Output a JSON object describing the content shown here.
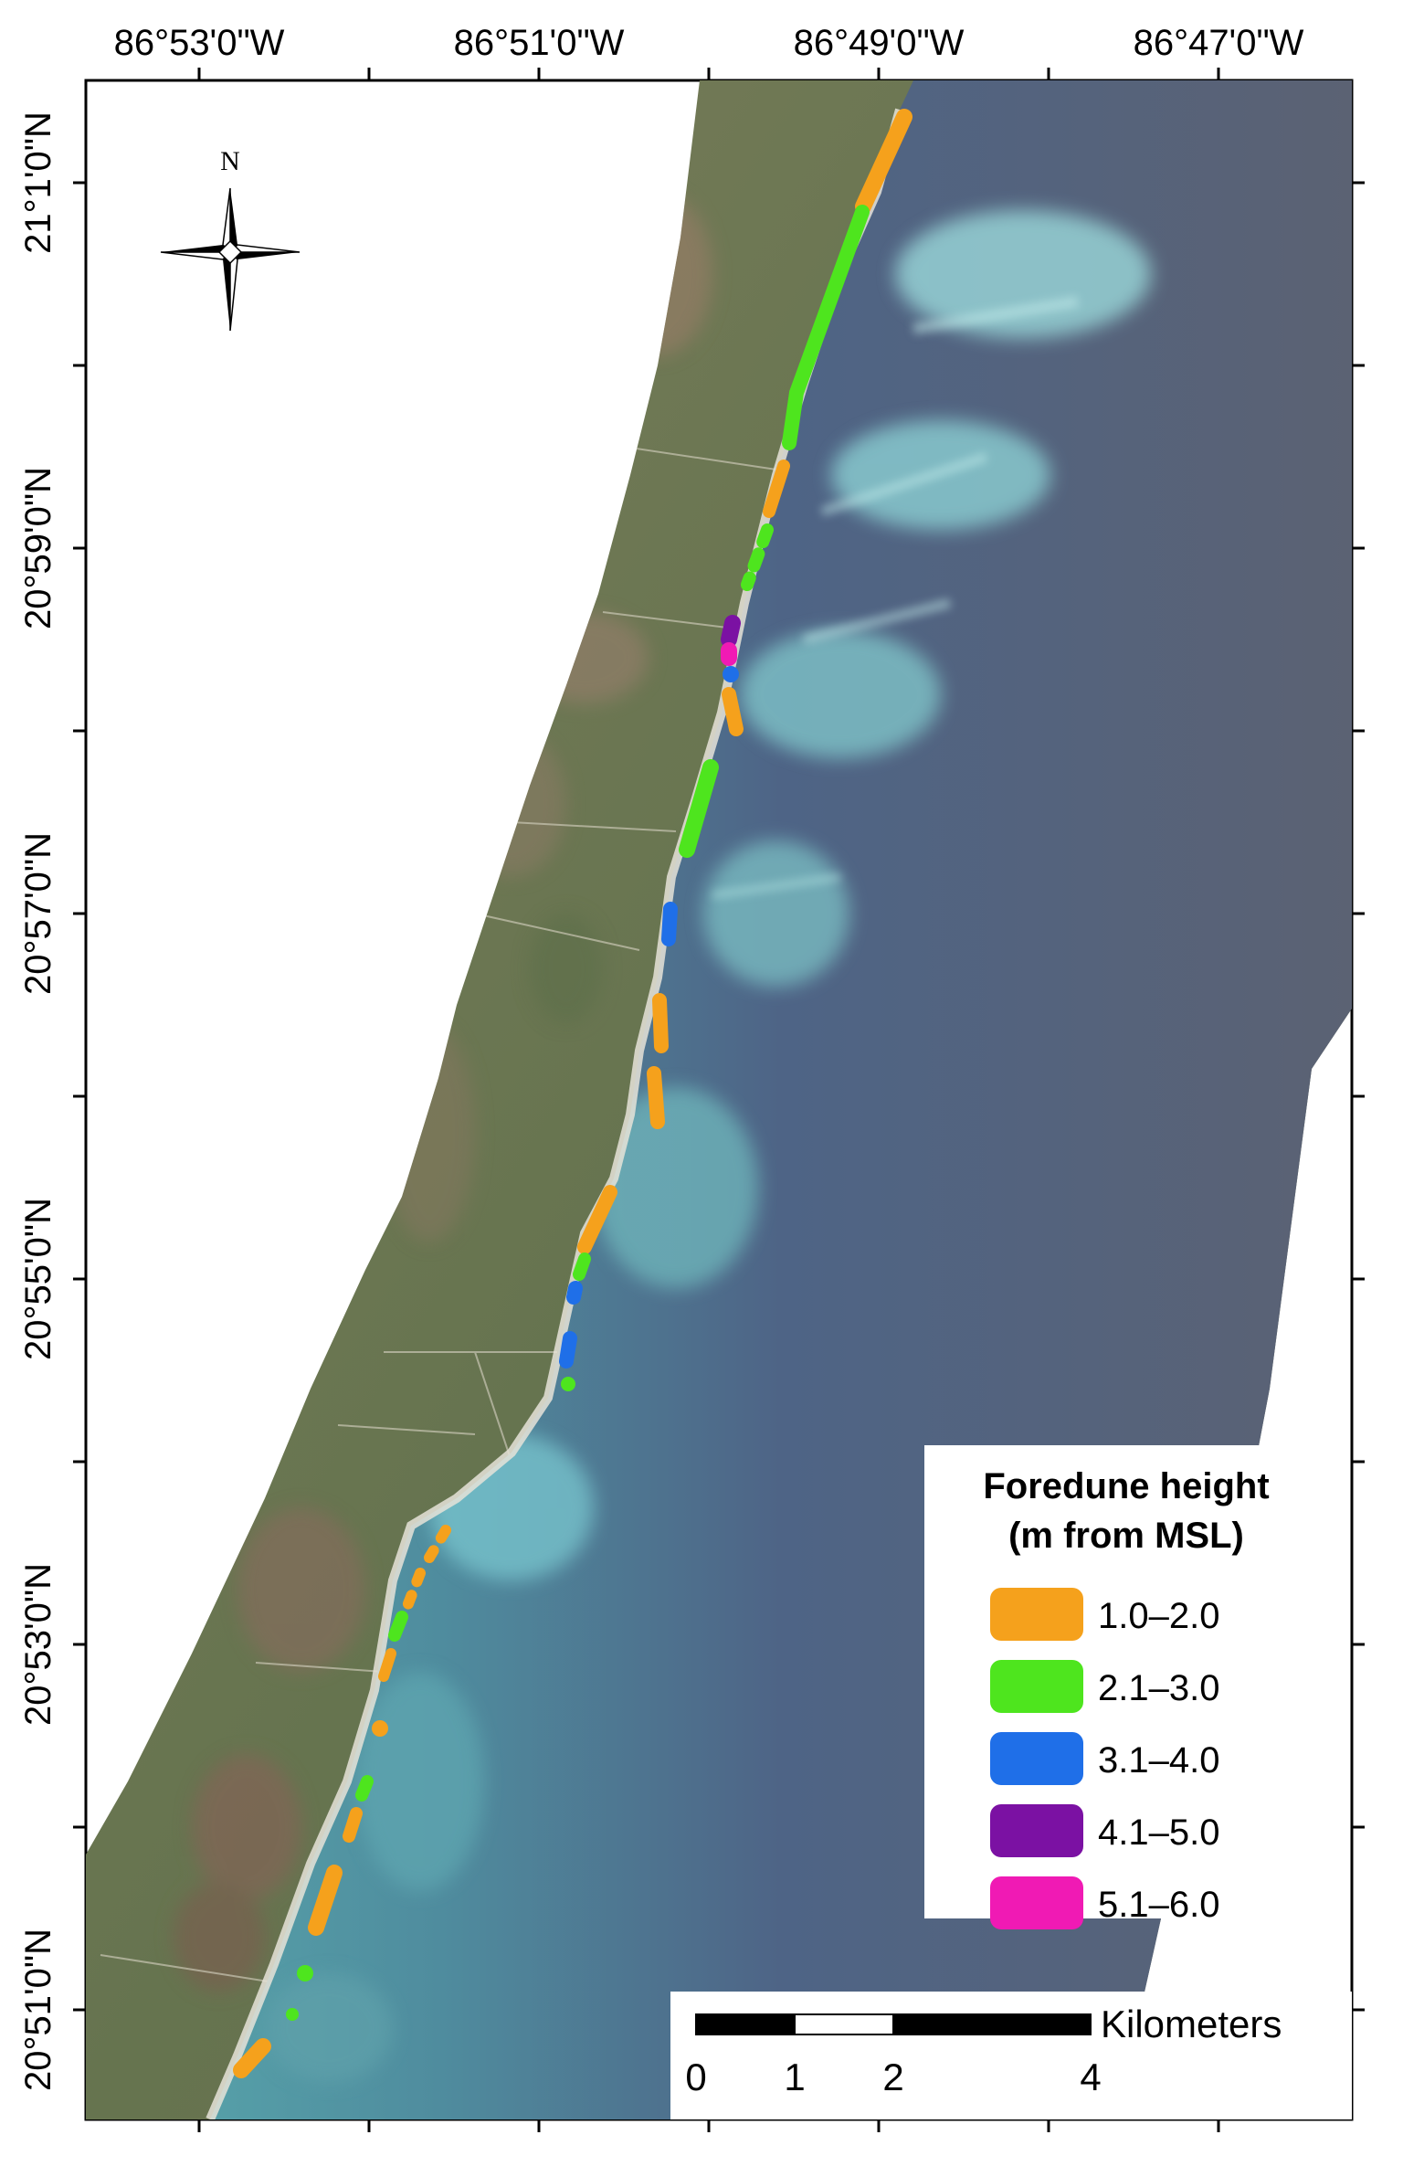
{
  "map": {
    "top_longitude_labels": [
      "86°53'0\"W",
      "86°51'0\"W",
      "86°49'0\"W",
      "86°47'0\"W"
    ],
    "left_latitude_labels": [
      "21°1'0\"N",
      "20°59'0\"N",
      "20°57'0\"N",
      "20°55'0\"N",
      "20°53'0\"N",
      "20°51'0\"N"
    ],
    "north_arrow_label": "N",
    "legend": {
      "title_line1": "Foredune height",
      "title_line2": "(m from MSL)",
      "items": [
        {
          "label": "1.0–2.0",
          "color": "#F5A11C"
        },
        {
          "label": "2.1–3.0",
          "color": "#4EE51E"
        },
        {
          "label": "3.1–4.0",
          "color": "#1F6FE8"
        },
        {
          "label": "4.1–5.0",
          "color": "#7B11A3"
        },
        {
          "label": "5.1–6.0",
          "color": "#F01AB4"
        }
      ]
    },
    "scale_bar": {
      "unit": "Kilometers",
      "ticks": [
        "0",
        "1",
        "2",
        "4"
      ]
    },
    "colors": {
      "land": "#6F7A59",
      "sea_shallow": "#52A7AE",
      "sea_deep": "#4A5A7A",
      "reef": "#8FD3D8"
    }
  }
}
